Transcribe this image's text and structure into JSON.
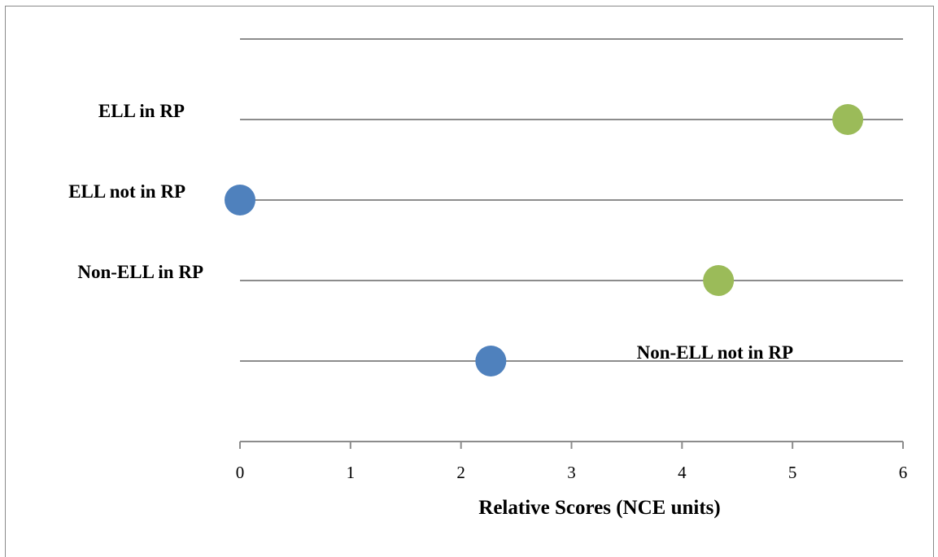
{
  "chart_data": {
    "type": "scatter",
    "categories": [
      "ELL in RP",
      "ELL not in RP",
      "Non-ELL in RP",
      "Non-ELL not in RP"
    ],
    "series": [
      {
        "color": "#9bbb59",
        "points": [
          {
            "category": "ELL in RP",
            "x": 5.5
          },
          {
            "category": "Non-ELL in RP",
            "x": 4.33
          }
        ]
      },
      {
        "color": "#4f81bd",
        "points": [
          {
            "category": "ELL not in RP",
            "x": 0.0
          },
          {
            "category": "Non-ELL not in RP",
            "x": 2.27
          }
        ]
      }
    ],
    "xlabel": "Relative Scores (NCE units)",
    "xlim": [
      0,
      6
    ],
    "xticks": [
      "0",
      "1",
      "2",
      "3",
      "4",
      "5",
      "6"
    ],
    "grid": true,
    "legend": "none"
  }
}
